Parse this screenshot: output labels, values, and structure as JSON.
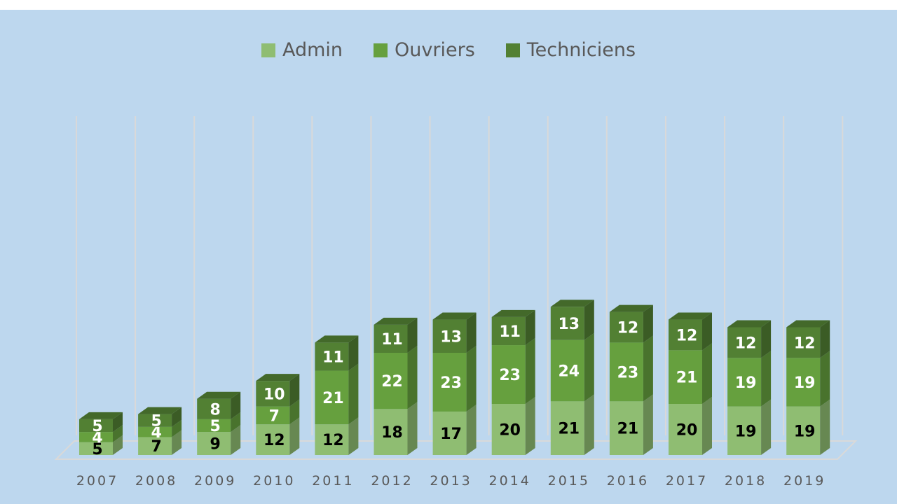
{
  "chart_data": {
    "type": "bar",
    "stacked": true,
    "style_3d": true,
    "categories": [
      "2007",
      "2008",
      "2009",
      "2010",
      "2011",
      "2012",
      "2013",
      "2014",
      "2015",
      "2016",
      "2017",
      "2018",
      "2019"
    ],
    "series": [
      {
        "name": "Admin",
        "values": [
          5,
          7,
          9,
          12,
          12,
          18,
          17,
          20,
          21,
          21,
          20,
          19,
          19
        ],
        "color": "#8fbd72",
        "label_color": "#000000"
      },
      {
        "name": "Ouvriers",
        "values": [
          4,
          4,
          5,
          7,
          21,
          22,
          23,
          23,
          24,
          23,
          21,
          19,
          19
        ],
        "color": "#66a03e",
        "label_color": "#ffffff"
      },
      {
        "name": "Techniciens",
        "values": [
          5,
          5,
          8,
          10,
          11,
          11,
          13,
          11,
          13,
          12,
          12,
          12,
          12
        ],
        "color": "#528033",
        "label_color": "#ffffff"
      }
    ],
    "data_labels": true,
    "legend_position": "top",
    "grid": "vertical",
    "background": "#bdd7ee"
  }
}
